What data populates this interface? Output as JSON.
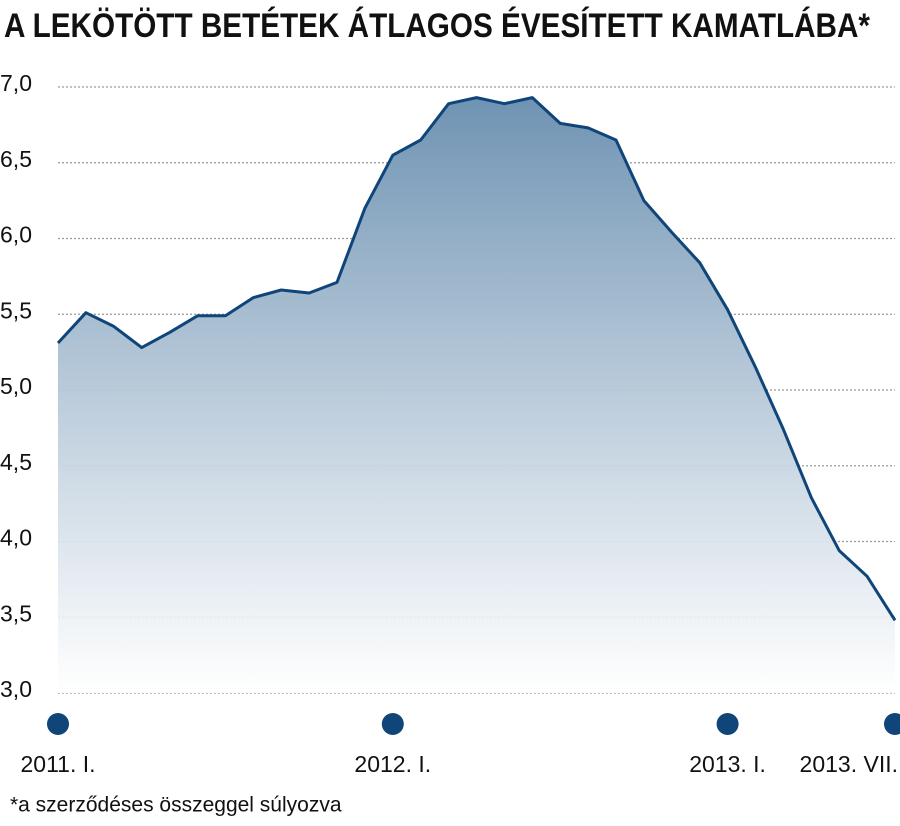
{
  "chart_data": {
    "type": "area",
    "title": "A LEKÖTÖTT BETÉTEK ÁTLAGOS ÉVESÍTETT KAMATLÁBA*",
    "footnote": "*a szerződéses összeggel súlyozva",
    "categories": [
      "2011. I.",
      null,
      null,
      null,
      null,
      null,
      null,
      null,
      null,
      null,
      null,
      null,
      "2012. I.",
      null,
      null,
      null,
      null,
      null,
      null,
      null,
      null,
      null,
      null,
      null,
      "2013. I.",
      null,
      null,
      null,
      null,
      null,
      "2013. VII."
    ],
    "values": [
      5.31,
      5.51,
      5.42,
      5.28,
      5.38,
      5.49,
      5.49,
      5.61,
      5.66,
      5.64,
      5.71,
      6.2,
      6.55,
      6.65,
      6.89,
      6.93,
      6.89,
      6.93,
      6.76,
      6.73,
      6.65,
      6.25,
      6.04,
      5.84,
      5.53,
      5.15,
      4.74,
      4.29,
      3.94,
      3.77,
      3.48
    ],
    "color": "#10457a",
    "ylim": [
      3,
      7
    ],
    "yticks": [
      {
        "value": 3,
        "label": "3,0"
      },
      {
        "value": 3.5,
        "label": "3,5"
      },
      {
        "value": 4,
        "label": "4,0"
      },
      {
        "value": 4.5,
        "label": "4,5"
      },
      {
        "value": 5,
        "label": "5,0"
      },
      {
        "value": 5.5,
        "label": "5,5"
      },
      {
        "value": 6,
        "label": "6,0"
      },
      {
        "value": 6.5,
        "label": "6,5"
      },
      {
        "value": 7,
        "label": "7,0"
      }
    ],
    "grid": true
  }
}
